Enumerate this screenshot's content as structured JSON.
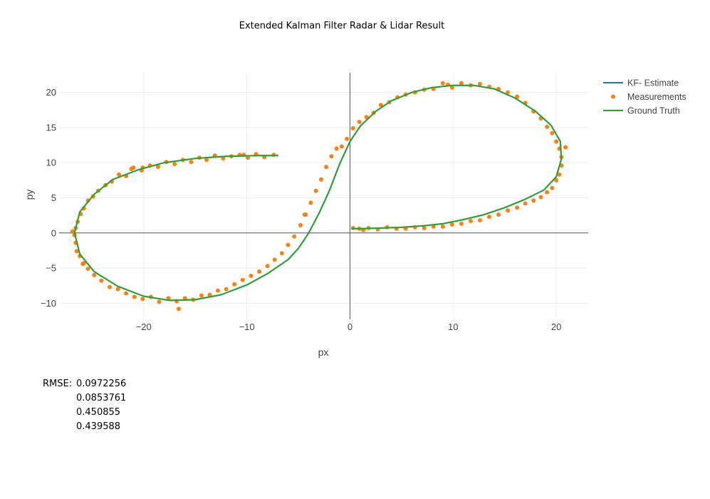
{
  "chart_data": {
    "type": "scatter",
    "title": "Extended Kalman Filter Radar & Lidar Result",
    "xlabel": "px",
    "ylabel": "py",
    "xlim": [
      -28.2,
      23.1
    ],
    "ylim": [
      -12.3,
      22.8
    ],
    "xticks": [
      -20,
      -10,
      0,
      10,
      20
    ],
    "xtick_labels": [
      "−20",
      "−10",
      "0",
      "10",
      "20"
    ],
    "yticks": [
      -10,
      -5,
      0,
      5,
      10,
      15,
      20
    ],
    "ytick_labels": [
      "−10",
      "−5",
      "0",
      "5",
      "10",
      "15",
      "20"
    ],
    "grid": true,
    "legend_position": "top-right",
    "series": [
      {
        "name": "KF- Estimate",
        "mode": "lines",
        "color": "#1f77b4",
        "x": [
          -7,
          -9,
          -12,
          -15,
          -18,
          -20.5,
          -23,
          -24.8,
          -26.2,
          -26.7,
          -26.2,
          -24.8,
          -22.5,
          -20,
          -17.5,
          -15,
          -12.5,
          -10,
          -8,
          -6,
          -5,
          -4,
          -3,
          -2,
          -1,
          0,
          1,
          2.5,
          4,
          6,
          8,
          10,
          12,
          14,
          16,
          18,
          19.5,
          20.4,
          20.5,
          20,
          18.8,
          17,
          15,
          13,
          11,
          9,
          7,
          5,
          3,
          1,
          0.2
        ],
        "y": [
          11,
          11,
          10.9,
          10.6,
          10,
          9,
          7.6,
          5.5,
          3,
          0,
          -3,
          -5.5,
          -7.6,
          -9,
          -9.6,
          -9.5,
          -8.8,
          -7.4,
          -5.8,
          -3.8,
          -2.2,
          0,
          2.8,
          6,
          9.8,
          13,
          15.2,
          17.3,
          18.8,
          20,
          20.7,
          21,
          21,
          20.5,
          19.2,
          17.3,
          15.3,
          13,
          10.5,
          8,
          6.1,
          4.8,
          3.6,
          2.6,
          1.9,
          1.3,
          1.0,
          0.8,
          0.7,
          0.6,
          0.6
        ]
      },
      {
        "name": "Measurements",
        "mode": "markers",
        "color": "#ff7f0e",
        "x": [
          -7.4,
          -8.3,
          -9.1,
          -9.9,
          -10.7,
          -11.5,
          -12.3,
          -13.1,
          -13.9,
          -14.6,
          -15.4,
          -16.2,
          -17,
          -17.8,
          -18.6,
          -19.4,
          -20.2,
          -21,
          -21.7,
          -22.4,
          -23.1,
          -23.7,
          -24.4,
          -24.9,
          -25.4,
          -25.8,
          -26.1,
          -26.4,
          -26.6,
          -26.7,
          -26.6,
          -26.5,
          -26.2,
          -25.9,
          -25.4,
          -24.8,
          -24.1,
          -23.3,
          -22.5,
          -21.7,
          -20.9,
          -20.1,
          -19.3,
          -18.5,
          -17.6,
          -16.8,
          -16,
          -15.2,
          -14.4,
          -13.6,
          -12.8,
          -12,
          -11.2,
          -10.4,
          -9.6,
          -8.8,
          -8,
          -7.3,
          -6.6,
          -6,
          -5.4,
          -4.8,
          -4.3,
          -3.8,
          -3.3,
          -2.8,
          -2.3,
          -1.8,
          -1.3,
          -0.8,
          -0.3,
          0.3,
          0.9,
          1.6,
          2.3,
          3,
          3.8,
          4.6,
          5.4,
          6.3,
          7.2,
          8.1,
          9,
          9.9,
          10.8,
          11.7,
          12.6,
          13.5,
          14.4,
          15.3,
          16.2,
          17,
          17.8,
          18.5,
          19.1,
          19.6,
          20,
          20.3,
          20.5,
          20.5,
          20.3,
          20,
          19.6,
          19.1,
          18.5,
          17.8,
          17,
          16.2,
          15.3,
          14.4,
          13.5,
          12.6,
          11.7,
          10.8,
          9.9,
          9,
          8.1,
          7.2,
          6.3,
          5.4,
          4.5,
          3.6,
          2.7,
          1.8,
          0.9,
          0.3,
          -16.6,
          -20.1,
          -25.8,
          -26.9,
          -21.2,
          -10.3,
          -4.4,
          20.9,
          9.5,
          1.3
        ],
        "y": [
          11.1,
          10.8,
          11.2,
          10.7,
          11.1,
          10.9,
          10.6,
          11,
          10.4,
          10.7,
          10.1,
          10.4,
          9.8,
          10.1,
          9.4,
          9.6,
          8.9,
          9.3,
          8.1,
          8.3,
          7.3,
          6.8,
          6,
          5.2,
          4.6,
          3.5,
          2.7,
          1.6,
          0.7,
          -0.3,
          -1.4,
          -2.6,
          -3.3,
          -4.4,
          -5.1,
          -6,
          -6.8,
          -7.7,
          -8,
          -8.6,
          -9.1,
          -9.4,
          -9.1,
          -9.8,
          -9.3,
          -9.7,
          -9.3,
          -9.5,
          -8.9,
          -8.8,
          -8.2,
          -8,
          -7.3,
          -6.7,
          -6.1,
          -5.5,
          -4.7,
          -3.8,
          -2.9,
          -1.7,
          -0.5,
          1.1,
          2.6,
          4.3,
          6,
          7.6,
          9.4,
          10.9,
          12,
          12.3,
          13.4,
          14.9,
          15.8,
          16.5,
          17.1,
          18.2,
          18.6,
          19.3,
          19.7,
          20,
          20.4,
          20.5,
          21.3,
          20.7,
          21.3,
          21,
          21.2,
          20.8,
          20.5,
          20,
          19.4,
          18.5,
          17.3,
          16.3,
          15.1,
          14.2,
          13,
          12,
          10.8,
          9.6,
          8.3,
          7.5,
          6.4,
          5.8,
          5.1,
          4.6,
          4.2,
          3.6,
          3.2,
          2.6,
          2.3,
          1.8,
          1.7,
          1.3,
          1.2,
          0.9,
          0.9,
          0.7,
          0.8,
          0.6,
          0.6,
          0.8,
          0.5,
          0.7,
          0.6,
          0.7,
          -10.8,
          9.3,
          -4.3,
          0.2,
          9.1,
          11.1,
          2.6,
          12.2,
          21.1,
          0.4
        ]
      },
      {
        "name": "Ground Truth",
        "mode": "lines",
        "color": "#2ca02c",
        "x": [
          -7,
          -9,
          -12,
          -15,
          -18,
          -20.5,
          -23,
          -24.8,
          -26.2,
          -26.7,
          -26.2,
          -24.8,
          -22.5,
          -20,
          -17.5,
          -15,
          -12.5,
          -10,
          -8,
          -6,
          -5,
          -4,
          -3,
          -2,
          -1,
          0,
          1,
          2.5,
          4,
          6,
          8,
          10,
          12,
          14,
          16,
          18,
          19.5,
          20.4,
          20.5,
          20,
          18.8,
          17,
          15,
          13,
          11,
          9,
          7,
          5,
          3,
          1,
          0.2
        ],
        "y": [
          11,
          11,
          10.9,
          10.6,
          10,
          9,
          7.6,
          5.5,
          3,
          0,
          -3,
          -5.5,
          -7.6,
          -9,
          -9.6,
          -9.5,
          -8.8,
          -7.4,
          -5.8,
          -3.8,
          -2.2,
          0,
          2.8,
          6,
          9.8,
          13,
          15.2,
          17.3,
          18.8,
          20,
          20.7,
          21,
          21,
          20.5,
          19.2,
          17.3,
          15.3,
          13,
          10.5,
          8,
          6.1,
          4.8,
          3.6,
          2.6,
          1.9,
          1.3,
          1.0,
          0.8,
          0.7,
          0.6,
          0.6
        ]
      }
    ]
  },
  "rmse": {
    "label": "RMSE:",
    "values": [
      "0.0972256",
      "0.0853761",
      "0.450855",
      "0.439588"
    ]
  }
}
